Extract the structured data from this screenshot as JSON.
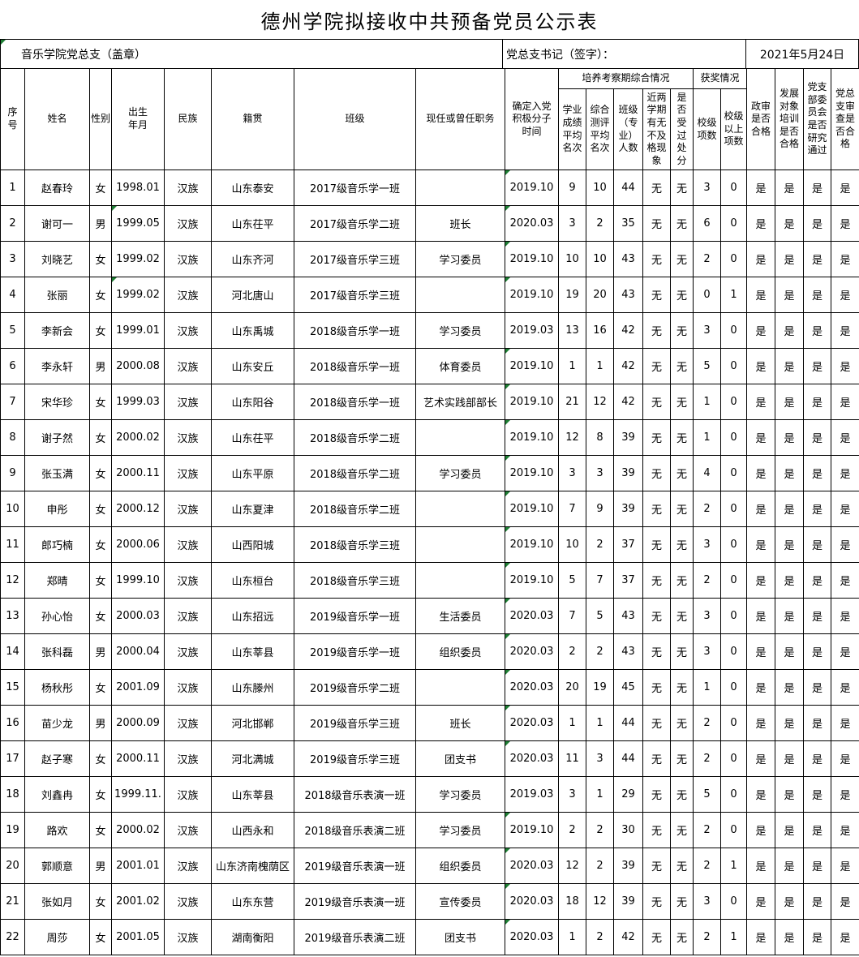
{
  "title": "德州学院拟接收中共预备党员公示表",
  "meta": {
    "branch_seal": "音乐学院党总支（盖章）",
    "secretary_sign": "党总支书记（签字）：",
    "date": "2021年5月24日"
  },
  "colors": {
    "background": "#ffffff",
    "border": "#000000",
    "comment_marker_green": "#1E7E34",
    "text": "#000000"
  },
  "table": {
    "groups": {
      "training_period": "培养考察期综合情况",
      "awards": "获奖情况"
    },
    "headers": {
      "index": "序\n号",
      "name": "姓名",
      "gender": "性别",
      "birth": "出生\n年月",
      "ethnicity": "民族",
      "native": "籍贯",
      "class": "班级",
      "position": "现任或曾任职务",
      "activist_date": "确定入党\n积极分子\n时间",
      "academic_rank": "学业\n成绩\n平均\n名次",
      "eval_rank": "综合\n测评\n平均\n名次",
      "class_size": "班级\n（专\n业）\n人数",
      "failed": "近两\n学期\n有无\n不及\n格现\n象",
      "disciplined": "是\n否\n受\n过\n处\n分",
      "school_awards": "校级\n项数",
      "above_awards": "校级\n以上\n项数",
      "political": "政审\n是否\n合格",
      "training": "发展\n对象\n培训\n是否\n合格",
      "branch_committee": "党支\n部委\n员会\n是否\n研究\n通过",
      "general_review": "党总\n支审\n查是\n否合\n格"
    },
    "column_keys": [
      "index",
      "name",
      "gender",
      "birth",
      "ethnicity",
      "native",
      "class",
      "position",
      "activist_date",
      "academic_rank",
      "eval_rank",
      "class_size",
      "failed",
      "disciplined",
      "school_awards",
      "above_awards",
      "political",
      "training",
      "branch_committee",
      "general_review"
    ],
    "rows": [
      [
        "1",
        "赵春玲",
        "女",
        "1998.01",
        "汉族",
        "山东泰安",
        "2017级音乐学一班",
        "",
        "2019.10",
        "9",
        "10",
        "44",
        "无",
        "无",
        "3",
        "0",
        "是",
        "是",
        "是",
        "是"
      ],
      [
        "2",
        "谢可一",
        "男",
        "1999.05",
        "汉族",
        "山东茌平",
        "2017级音乐学二班",
        "班长",
        "2020.03",
        "3",
        "2",
        "35",
        "无",
        "无",
        "6",
        "0",
        "是",
        "是",
        "是",
        "是"
      ],
      [
        "3",
        "刘晓艺",
        "女",
        "1999.02",
        "汉族",
        "山东齐河",
        "2017级音乐学三班",
        "学习委员",
        "2019.10",
        "10",
        "10",
        "43",
        "无",
        "无",
        "2",
        "0",
        "是",
        "是",
        "是",
        "是"
      ],
      [
        "4",
        "张丽",
        "女",
        "1999.02",
        "汉族",
        "河北唐山",
        "2017级音乐学三班",
        "",
        "2019.10",
        "19",
        "20",
        "43",
        "无",
        "无",
        "0",
        "1",
        "是",
        "是",
        "是",
        "是"
      ],
      [
        "5",
        "李新会",
        "女",
        "1999.01",
        "汉族",
        "山东禹城",
        "2018级音乐学一班",
        "学习委员",
        "2019.03",
        "13",
        "16",
        "42",
        "无",
        "无",
        "3",
        "0",
        "是",
        "是",
        "是",
        "是"
      ],
      [
        "6",
        "李永轩",
        "男",
        "2000.08",
        "汉族",
        "山东安丘",
        "2018级音乐学一班",
        "体育委员",
        "2019.10",
        "1",
        "1",
        "42",
        "无",
        "无",
        "5",
        "0",
        "是",
        "是",
        "是",
        "是"
      ],
      [
        "7",
        "宋华珍",
        "女",
        "1999.03",
        "汉族",
        "山东阳谷",
        "2018级音乐学一班",
        "艺术实践部部长",
        "2019.10",
        "21",
        "12",
        "42",
        "无",
        "无",
        "1",
        "0",
        "是",
        "是",
        "是",
        "是"
      ],
      [
        "8",
        "谢子然",
        "女",
        "2000.02",
        "汉族",
        "山东茌平",
        "2018级音乐学二班",
        "",
        "2019.10",
        "12",
        "8",
        "39",
        "无",
        "无",
        "1",
        "0",
        "是",
        "是",
        "是",
        "是"
      ],
      [
        "9",
        "张玉满",
        "女",
        "2000.11",
        "汉族",
        "山东平原",
        "2018级音乐学二班",
        "学习委员",
        "2019.10",
        "3",
        "3",
        "39",
        "无",
        "无",
        "4",
        "0",
        "是",
        "是",
        "是",
        "是"
      ],
      [
        "10",
        "申彤",
        "女",
        "2000.12",
        "汉族",
        "山东夏津",
        "2018级音乐学二班",
        "",
        "2019.10",
        "7",
        "9",
        "39",
        "无",
        "无",
        "2",
        "0",
        "是",
        "是",
        "是",
        "是"
      ],
      [
        "11",
        "郎巧楠",
        "女",
        "2000.06",
        "汉族",
        "山西阳城",
        "2018级音乐学三班",
        "",
        "2019.10",
        "10",
        "2",
        "37",
        "无",
        "无",
        "3",
        "0",
        "是",
        "是",
        "是",
        "是"
      ],
      [
        "12",
        "郑晴",
        "女",
        "1999.10",
        "汉族",
        "山东桓台",
        "2018级音乐学三班",
        "",
        "2019.10",
        "5",
        "7",
        "37",
        "无",
        "无",
        "2",
        "0",
        "是",
        "是",
        "是",
        "是"
      ],
      [
        "13",
        "孙心怡",
        "女",
        "2000.03",
        "汉族",
        "山东招远",
        "2019级音乐学一班",
        "生活委员",
        "2020.03",
        "7",
        "5",
        "43",
        "无",
        "无",
        "3",
        "0",
        "是",
        "是",
        "是",
        "是"
      ],
      [
        "14",
        "张科磊",
        "男",
        "2000.04",
        "汉族",
        "山东莘县",
        "2019级音乐学一班",
        "组织委员",
        "2020.03",
        "2",
        "2",
        "43",
        "无",
        "无",
        "3",
        "0",
        "是",
        "是",
        "是",
        "是"
      ],
      [
        "15",
        "杨秋彤",
        "女",
        "2001.09",
        "汉族",
        "山东滕州",
        "2019级音乐学二班",
        "",
        "2020.03",
        "20",
        "19",
        "45",
        "无",
        "无",
        "1",
        "0",
        "是",
        "是",
        "是",
        "是"
      ],
      [
        "16",
        "苗少龙",
        "男",
        "2000.09",
        "汉族",
        "河北邯郸",
        "2019级音乐学三班",
        "班长",
        "2020.03",
        "1",
        "1",
        "44",
        "无",
        "无",
        "2",
        "0",
        "是",
        "是",
        "是",
        "是"
      ],
      [
        "17",
        "赵子寒",
        "女",
        "2000.11",
        "汉族",
        "河北满城",
        "2019级音乐学三班",
        "团支书",
        "2020.03",
        "11",
        "3",
        "44",
        "无",
        "无",
        "2",
        "0",
        "是",
        "是",
        "是",
        "是"
      ],
      [
        "18",
        "刘鑫冉",
        "女",
        "1999.11.",
        "汉族",
        "山东莘县",
        "2018级音乐表演一班",
        "学习委员",
        "2019.03",
        "3",
        "1",
        "29",
        "无",
        "无",
        "5",
        "0",
        "是",
        "是",
        "是",
        "是"
      ],
      [
        "19",
        "路欢",
        "女",
        "2000.02",
        "汉族",
        "山西永和",
        "2018级音乐表演二班",
        "学习委员",
        "2019.10",
        "2",
        "2",
        "30",
        "无",
        "无",
        "2",
        "0",
        "是",
        "是",
        "是",
        "是"
      ],
      [
        "20",
        "郭顺意",
        "男",
        "2001.01",
        "汉族",
        "山东济南槐荫区",
        "2019级音乐表演一班",
        "组织委员",
        "2020.03",
        "12",
        "2",
        "39",
        "无",
        "无",
        "2",
        "1",
        "是",
        "是",
        "是",
        "是"
      ],
      [
        "21",
        "张如月",
        "女",
        "2001.02",
        "汉族",
        "山东东营",
        "2019级音乐表演一班",
        "宣传委员",
        "2020.03",
        "18",
        "12",
        "39",
        "无",
        "无",
        "3",
        "0",
        "是",
        "是",
        "是",
        "是"
      ],
      [
        "22",
        "周莎",
        "女",
        "2001.05",
        "汉族",
        "湖南衡阳",
        "2019级音乐表演二班",
        "团支书",
        "2020.03",
        "1",
        "2",
        "42",
        "无",
        "无",
        "2",
        "1",
        "是",
        "是",
        "是",
        "是"
      ]
    ],
    "green_markers": {
      "meta_branch_cell": true,
      "birth_rows": [
        2,
        4
      ],
      "activist_date_rows": [
        1,
        2,
        3,
        4,
        6,
        7,
        8,
        9,
        10,
        11,
        12,
        13,
        14,
        15,
        16,
        17,
        19,
        20,
        21,
        22
      ]
    }
  }
}
